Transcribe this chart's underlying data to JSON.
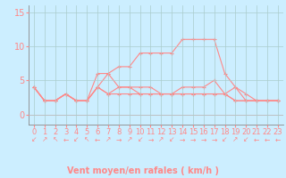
{
  "title": "",
  "xlabel": "Vent moyen/en rafales ( km/h )",
  "xlim": [
    -0.5,
    23.5
  ],
  "ylim": [
    -1.5,
    16
  ],
  "yticks": [
    0,
    5,
    10,
    15
  ],
  "xticks": [
    0,
    1,
    2,
    3,
    4,
    5,
    6,
    7,
    8,
    9,
    10,
    11,
    12,
    13,
    14,
    15,
    16,
    17,
    18,
    19,
    20,
    21,
    22,
    23
  ],
  "background_color": "#cceeff",
  "grid_color": "#aacccc",
  "line_color": "#ff8888",
  "hours": [
    0,
    1,
    2,
    3,
    4,
    5,
    6,
    7,
    8,
    9,
    10,
    11,
    12,
    13,
    14,
    15,
    16,
    17,
    18,
    19,
    20,
    21,
    22,
    23
  ],
  "wind_gust": [
    4,
    2,
    2,
    3,
    2,
    2,
    6,
    6,
    7,
    7,
    9,
    9,
    9,
    9,
    11,
    11,
    11,
    11,
    6,
    4,
    2,
    2,
    2,
    2
  ],
  "wind_avg": [
    4,
    2,
    2,
    3,
    2,
    2,
    4,
    3,
    4,
    4,
    4,
    4,
    3,
    3,
    4,
    4,
    4,
    5,
    3,
    4,
    3,
    2,
    2,
    2
  ],
  "wind_max": [
    4,
    2,
    2,
    3,
    2,
    2,
    4,
    6,
    4,
    4,
    3,
    3,
    3,
    3,
    3,
    3,
    3,
    3,
    3,
    2,
    2,
    2,
    2,
    2
  ],
  "wind_min": [
    4,
    2,
    2,
    3,
    2,
    2,
    4,
    3,
    3,
    3,
    3,
    3,
    3,
    3,
    3,
    3,
    3,
    3,
    3,
    2,
    2,
    2,
    2,
    2
  ],
  "xlabel_fontsize": 7,
  "tick_fontsize": 6,
  "arrow_symbols": [
    "↙",
    "↗",
    "↖",
    "←",
    "↙",
    "↖",
    "←",
    "↗",
    "→",
    "↗",
    "↙",
    "→",
    "↗",
    "↙",
    "→",
    "→",
    "→",
    "→",
    "↙",
    "↗",
    "↙",
    "←",
    "←",
    "←"
  ]
}
